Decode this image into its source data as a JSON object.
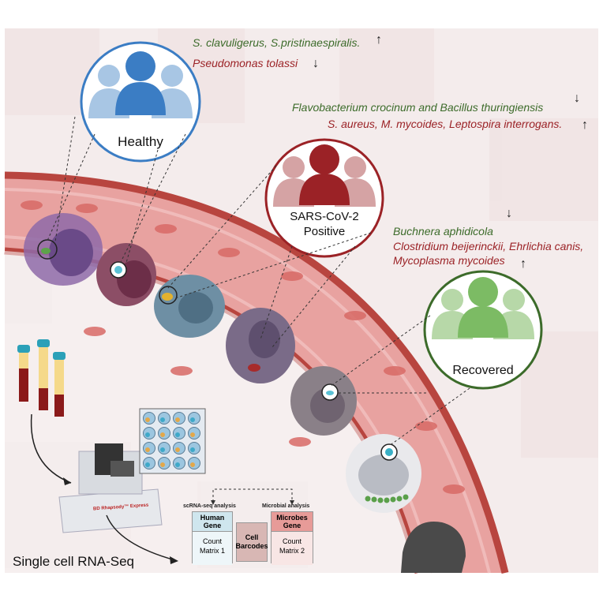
{
  "groups": {
    "healthy": "Healthy",
    "positive_line1": "SARS-CoV-2",
    "positive_line2": "Positive",
    "recovered": "Recovered"
  },
  "healthy_microbes": {
    "up": "S. clavuligerus, S.pristinaespiralis.",
    "down": "Pseudomonas tolassi"
  },
  "positive_microbes": {
    "down": "Flavobacterium crocinum and Bacillus thuringiensis",
    "up": "S. aureus,  M. mycoides, Leptospira interrogans."
  },
  "recovered_microbes": {
    "down": "Buchnera aphidicola",
    "up_line1": "Clostridium beijerinckii, Ehrlichia canis,",
    "up_line2": "Mycoplasma mycoides"
  },
  "workflow": {
    "title": "Single cell RNA-Seq",
    "instrument": "BD Rhapsody™ Express"
  },
  "analysis": {
    "scrna_label": "scRNA-seq analysis",
    "microbial_label": "Microbial analysis",
    "human_gene": "Human Gene",
    "human_matrix": "Count Matrix 1",
    "cell_barcodes": "Cell Barcodes",
    "microbes_gene": "Microbes Gene",
    "microbes_matrix": "Count Matrix 2"
  },
  "colors": {
    "healthy": "#3b7dc4",
    "positive": "#9b2226",
    "recovered": "#3c6b2a",
    "vessel": "#e9a0a0"
  }
}
